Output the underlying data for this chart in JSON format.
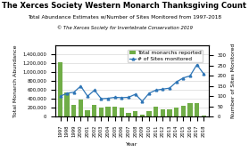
{
  "title": "The Xerces Society Western Monarch Thanksgiving Count",
  "subtitle": "Total Abundance Estimates w/Number of Sites Monitored from 1997-2018",
  "copyright": "© The Xerces Society for Invertebrate Conservation 2019",
  "xlabel": "Year",
  "ylabel_left": "Total Monarch Abundance",
  "ylabel_right": "Number of Sites Monitored",
  "years": [
    1997,
    1998,
    1999,
    2000,
    2001,
    2002,
    2003,
    2004,
    2005,
    2006,
    2007,
    2008,
    2009,
    2010,
    2011,
    2012,
    2013,
    2014,
    2015,
    2016,
    2017,
    2018
  ],
  "monarchs": [
    1230000,
    545000,
    270000,
    390000,
    150000,
    260000,
    210000,
    220000,
    220000,
    210000,
    80000,
    120000,
    35000,
    120000,
    230000,
    160000,
    160000,
    200000,
    250000,
    300000,
    300000,
    25000
  ],
  "sites": [
    100,
    115,
    120,
    150,
    100,
    130,
    88,
    90,
    95,
    93,
    95,
    110,
    75,
    115,
    130,
    135,
    140,
    170,
    190,
    200,
    255,
    210
  ],
  "bar_color": "#70ad47",
  "line_color": "#2e75b6",
  "marker": "^",
  "ylim_left": [
    0,
    1600000
  ],
  "ylim_right": [
    0,
    350
  ],
  "yticks_left": [
    0,
    200000,
    400000,
    600000,
    800000,
    1000000,
    1200000,
    1400000
  ],
  "yticks_right": [
    0,
    50,
    100,
    150,
    200,
    250,
    300
  ],
  "background_color": "#ffffff",
  "legend_total": "Total monarchs reported",
  "legend_sites": "# of Sites monitored",
  "title_fontsize": 6.0,
  "subtitle_fontsize": 4.2,
  "copyright_fontsize": 3.8,
  "axis_fontsize": 4.5,
  "tick_fontsize": 3.8,
  "legend_fontsize": 4.2
}
